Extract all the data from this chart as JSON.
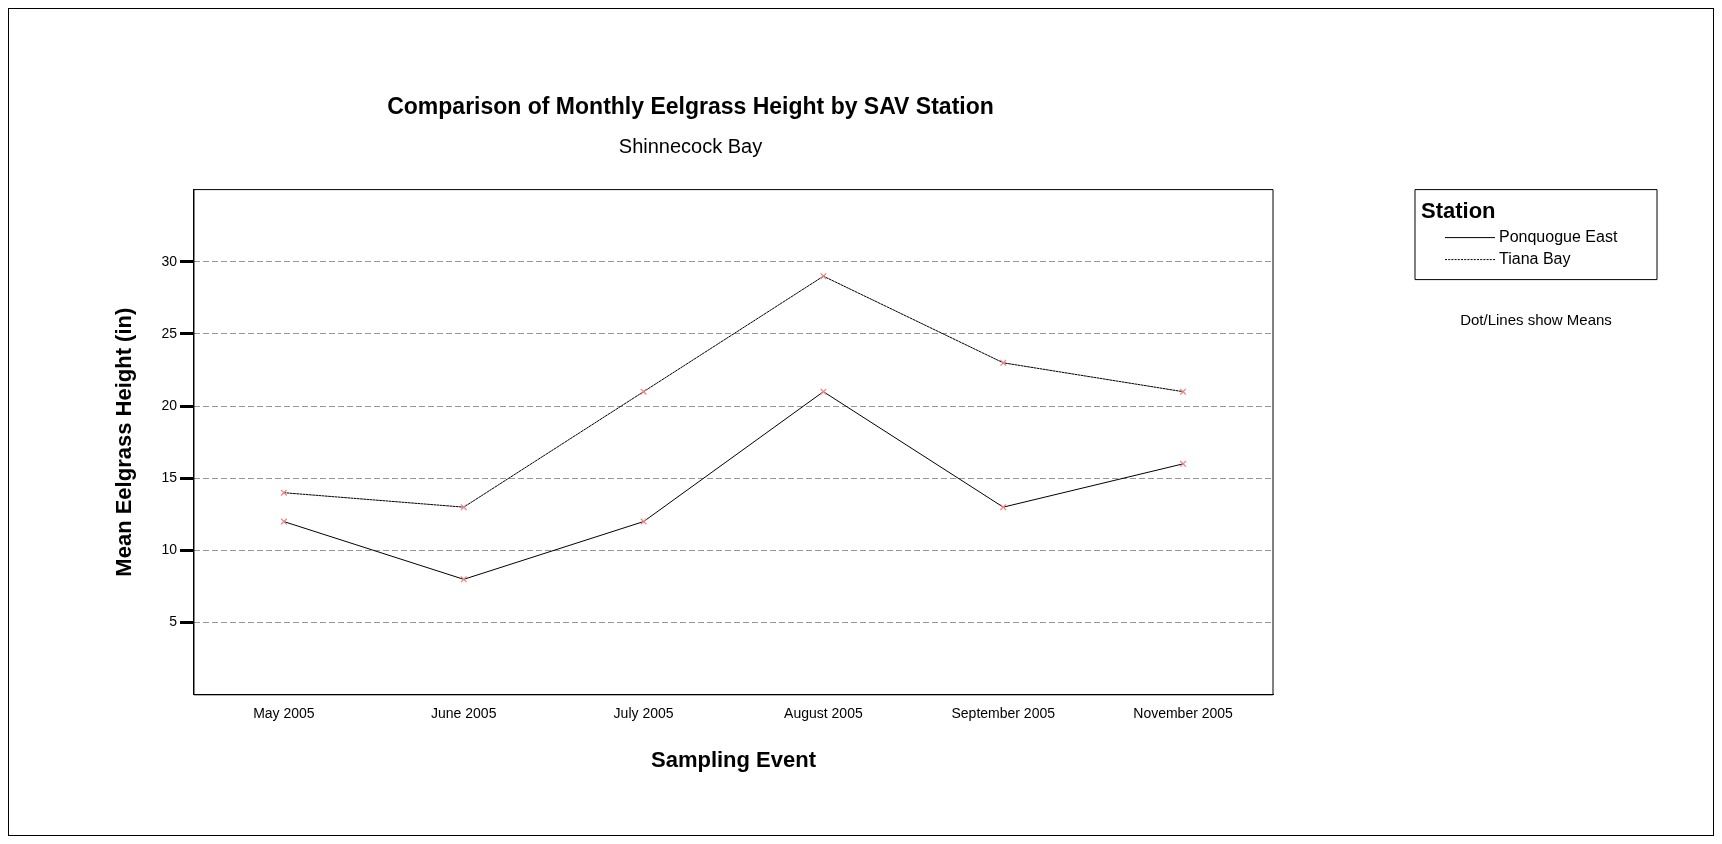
{
  "chart_data": {
    "type": "line",
    "title": "Comparison of Monthly Eelgrass Height by SAV Station",
    "subtitle": "Shinnecock Bay",
    "xlabel": "Sampling Event",
    "ylabel": "Mean Eelgrass Height (in)",
    "legend_title": "Station",
    "annotations": [
      "Dot/Lines show Means"
    ],
    "categories": [
      "May 2005",
      "June 2005",
      "July 2005",
      "August 2005",
      "September 2005",
      "November 2005"
    ],
    "series": [
      {
        "name": "Ponquogue East",
        "color": "#000000",
        "line_style": "solid",
        "values": [
          12,
          8,
          12,
          21,
          13,
          16
        ]
      },
      {
        "name": "Tiana Bay",
        "color": "#000000",
        "line_style": "dotted",
        "values": [
          14,
          13,
          21,
          29,
          23,
          21
        ]
      }
    ],
    "ylim": [
      0,
      35
    ],
    "yticks": [
      5,
      10,
      15,
      20,
      25,
      30
    ],
    "grid": "y",
    "legend": "top right",
    "marker": "cross"
  }
}
